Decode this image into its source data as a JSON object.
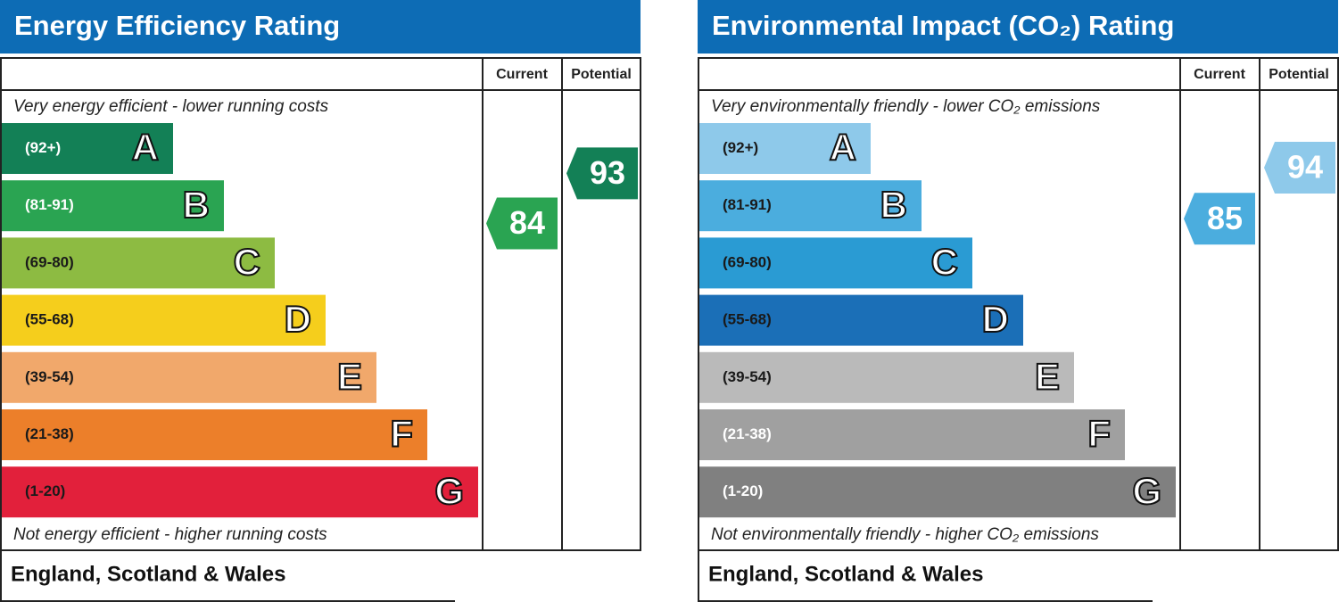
{
  "panels": [
    {
      "title": "Energy Efficiency Rating",
      "current_header": "Current",
      "potential_header": "Potential",
      "top_note": "Very energy efficient - lower running costs",
      "bottom_note": "Not energy efficient - higher running costs",
      "footer": "England, Scotland & Wales",
      "bands": [
        {
          "range": "(92+)",
          "letter": "A",
          "color": "#138056",
          "text_color": "#ffffff"
        },
        {
          "range": "(81-91)",
          "letter": "B",
          "color": "#2aa452",
          "text_color": "#ffffff"
        },
        {
          "range": "(69-80)",
          "letter": "C",
          "color": "#8dbb42",
          "text_color": "#1a1a1a"
        },
        {
          "range": "(55-68)",
          "letter": "D",
          "color": "#f5ce1c",
          "text_color": "#1a1a1a"
        },
        {
          "range": "(39-54)",
          "letter": "E",
          "color": "#f1a86b",
          "text_color": "#1a1a1a"
        },
        {
          "range": "(21-38)",
          "letter": "F",
          "color": "#ec7f2a",
          "text_color": "#1a1a1a"
        },
        {
          "range": "(1-20)",
          "letter": "G",
          "color": "#e2203b",
          "text_color": "#1a1a1a"
        }
      ],
      "current": 84,
      "potential": 93
    },
    {
      "title": "Environmental Impact (CO₂) Rating",
      "current_header": "Current",
      "potential_header": "Potential",
      "top_note": "Very environmentally friendly - lower CO₂ emissions",
      "bottom_note": "Not environmentally friendly - higher CO₂ emissions",
      "footer": "England, Scotland & Wales",
      "bands": [
        {
          "range": "(92+)",
          "letter": "A",
          "color": "#8ec9ea",
          "text_color": "#1a1a1a"
        },
        {
          "range": "(81-91)",
          "letter": "B",
          "color": "#4badde",
          "text_color": "#1a1a1a"
        },
        {
          "range": "(69-80)",
          "letter": "C",
          "color": "#2a9bd3",
          "text_color": "#1a1a1a"
        },
        {
          "range": "(55-68)",
          "letter": "D",
          "color": "#1b6fb7",
          "text_color": "#1a1a1a"
        },
        {
          "range": "(39-54)",
          "letter": "E",
          "color": "#bababa",
          "text_color": "#1a1a1a"
        },
        {
          "range": "(21-38)",
          "letter": "F",
          "color": "#a0a0a0",
          "text_color": "#ffffff"
        },
        {
          "range": "(1-20)",
          "letter": "G",
          "color": "#808080",
          "text_color": "#ffffff"
        }
      ],
      "current": 85,
      "potential": 94
    }
  ]
}
